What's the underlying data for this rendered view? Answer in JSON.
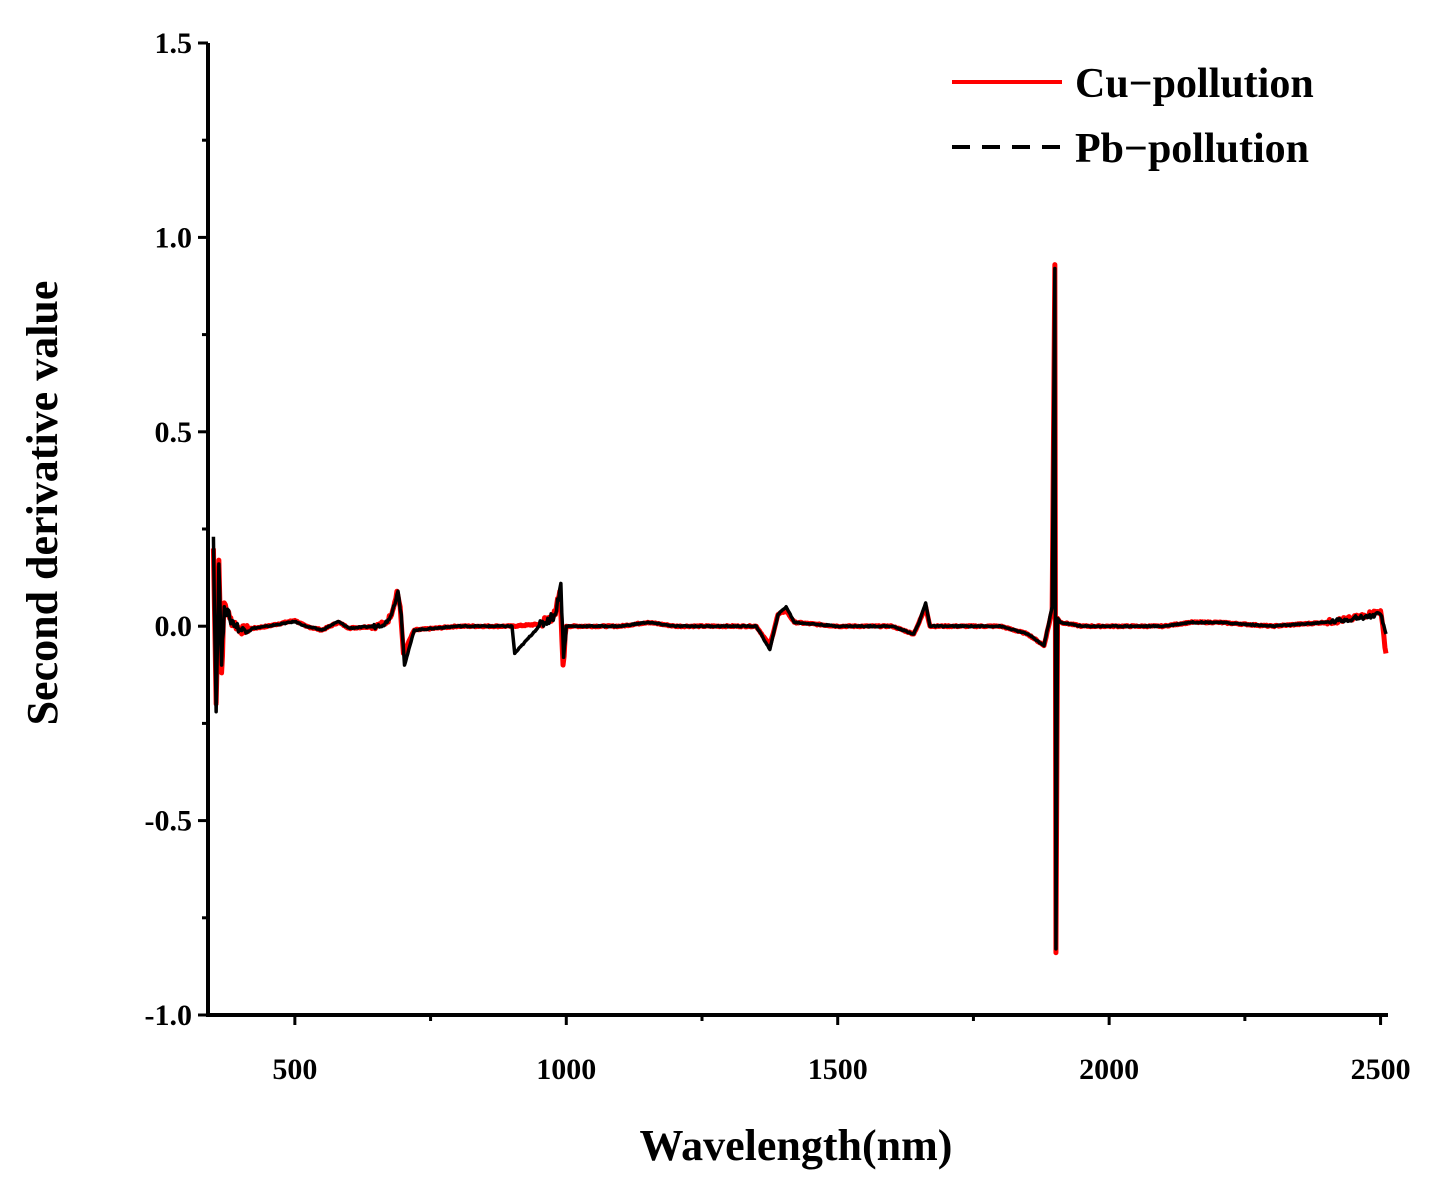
{
  "chart_data": {
    "type": "line",
    "title": "",
    "xlabel": "Wavelength(nm)",
    "ylabel": "Second derivative value",
    "xlim": [
      340,
      2510
    ],
    "ylim": [
      -1.0,
      1.5
    ],
    "x_ticks": [
      500,
      1000,
      1500,
      2000,
      2500
    ],
    "x_tick_labels": [
      "500",
      "1000",
      "1500",
      "2000",
      "2500"
    ],
    "y_ticks": [
      -1.0,
      -0.5,
      0.0,
      0.5,
      1.0,
      1.5
    ],
    "y_tick_labels": [
      "-1.0",
      "-0.5",
      "0.0",
      "0.5",
      "1.0",
      "1.5"
    ],
    "grid": false,
    "legend_position": "top-right",
    "series": [
      {
        "name": "Cu−pollution",
        "color": "#ff0000",
        "style": "solid",
        "x": [
          350,
          355,
          360,
          365,
          370,
          380,
          400,
          450,
          500,
          520,
          550,
          580,
          600,
          650,
          670,
          680,
          688,
          694,
          700,
          720,
          800,
          900,
          950,
          980,
          988,
          994,
          1000,
          1100,
          1150,
          1200,
          1300,
          1350,
          1375,
          1390,
          1405,
          1420,
          1500,
          1600,
          1640,
          1650,
          1662,
          1670,
          1700,
          1800,
          1850,
          1880,
          1895,
          1900,
          1902,
          1905,
          1910,
          1950,
          2000,
          2100,
          2150,
          2200,
          2300,
          2400,
          2450,
          2500,
          2510
        ],
        "y": [
          0.2,
          -0.2,
          0.17,
          -0.12,
          0.06,
          0.02,
          -0.01,
          0.0,
          0.015,
          0.0,
          -0.01,
          0.01,
          -0.005,
          0.0,
          0.01,
          0.04,
          0.09,
          0.05,
          -0.07,
          -0.01,
          0.0,
          0.0,
          0.005,
          0.03,
          0.09,
          -0.1,
          0.0,
          0.0,
          0.01,
          0.0,
          0.0,
          0.0,
          -0.05,
          0.03,
          0.04,
          0.01,
          0.0,
          0.0,
          -0.02,
          0.01,
          0.05,
          0.0,
          0.0,
          0.0,
          -0.02,
          -0.05,
          0.04,
          0.93,
          -0.84,
          0.02,
          0.01,
          0.0,
          0.0,
          0.0,
          0.01,
          0.01,
          0.0,
          0.01,
          0.02,
          0.04,
          -0.07
        ]
      },
      {
        "name": "Pb−pollution",
        "color": "#000000",
        "style": "dashed",
        "x": [
          350,
          355,
          360,
          365,
          370,
          380,
          400,
          450,
          500,
          520,
          550,
          580,
          600,
          650,
          670,
          680,
          690,
          696,
          702,
          720,
          800,
          900,
          905,
          950,
          980,
          990,
          995,
          1000,
          1100,
          1150,
          1200,
          1300,
          1350,
          1375,
          1390,
          1405,
          1420,
          1500,
          1600,
          1640,
          1650,
          1662,
          1670,
          1700,
          1800,
          1850,
          1880,
          1895,
          1900,
          1902,
          1905,
          1910,
          1950,
          2000,
          2100,
          2150,
          2200,
          2300,
          2400,
          2450,
          2500,
          2510
        ],
        "y": [
          0.23,
          -0.22,
          0.16,
          -0.1,
          0.05,
          0.02,
          -0.01,
          0.0,
          0.012,
          0.0,
          -0.01,
          0.012,
          -0.005,
          0.0,
          0.01,
          0.04,
          0.09,
          0.03,
          -0.1,
          -0.01,
          0.0,
          0.0,
          -0.07,
          0.0,
          0.03,
          0.11,
          -0.08,
          0.0,
          0.0,
          0.01,
          0.0,
          0.0,
          0.0,
          -0.06,
          0.03,
          0.05,
          0.01,
          0.0,
          0.0,
          -0.02,
          0.01,
          0.06,
          0.0,
          0.0,
          0.0,
          -0.02,
          -0.05,
          0.05,
          0.92,
          -0.83,
          0.02,
          0.01,
          0.0,
          0.0,
          0.0,
          0.01,
          0.01,
          0.0,
          0.01,
          0.02,
          0.03,
          -0.02
        ]
      }
    ]
  }
}
